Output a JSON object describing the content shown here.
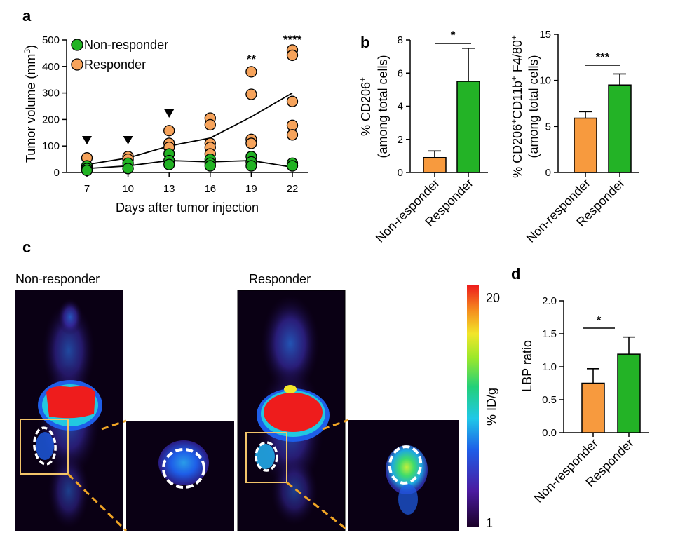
{
  "panel_labels": {
    "a": "a",
    "b": "b",
    "c": "c",
    "d": "d"
  },
  "colors": {
    "non_responder": "#21b323",
    "responder": "#f6a35b",
    "orange_bar": "#f79a3e",
    "green_bar": "#23b326",
    "crop_box": "#f2c46a",
    "dash": "#f0a526"
  },
  "chart_data": [
    {
      "id": "a",
      "type": "scatter",
      "xlabel": "Days after tumor injection",
      "ylabel_main": "Tumor volume (mm",
      "ylabel_sup": "3",
      "ylabel_end": ")",
      "x": [
        7,
        10,
        13,
        16,
        19,
        22
      ],
      "x_ticks": [
        "7",
        "10",
        "13",
        "16",
        "19",
        "22"
      ],
      "ylim": [
        0,
        500
      ],
      "y_ticks": [
        "0",
        "100",
        "200",
        "300",
        "400",
        "500"
      ],
      "legend": [
        {
          "name": "Non-responder",
          "color": "#21b323"
        },
        {
          "name": "Responder",
          "color": "#f6a35b"
        }
      ],
      "series": [
        {
          "name": "Responder",
          "color": "#f6a35b",
          "points": [
            [
              7,
              55
            ],
            [
              7,
              20
            ],
            [
              10,
              60
            ],
            [
              10,
              50
            ],
            [
              13,
              158
            ],
            [
              13,
              110
            ],
            [
              13,
              95
            ],
            [
              16,
              205
            ],
            [
              16,
              180
            ],
            [
              16,
              110
            ],
            [
              16,
              95
            ],
            [
              16,
              70
            ],
            [
              19,
              380
            ],
            [
              19,
              295
            ],
            [
              19,
              125
            ],
            [
              19,
              110
            ],
            [
              22,
              462
            ],
            [
              22,
              442
            ],
            [
              22,
              268
            ],
            [
              22,
              178
            ],
            [
              22,
              142
            ]
          ],
          "mean": [
            [
              7,
              30
            ],
            [
              10,
              55
            ],
            [
              13,
              100
            ],
            [
              16,
              130
            ],
            [
              19,
              210
            ],
            [
              22,
              300
            ]
          ]
        },
        {
          "name": "Non-responder",
          "color": "#21b323",
          "points": [
            [
              7,
              25
            ],
            [
              7,
              15
            ],
            [
              7,
              8
            ],
            [
              10,
              35
            ],
            [
              10,
              15
            ],
            [
              13,
              70
            ],
            [
              13,
              45
            ],
            [
              13,
              30
            ],
            [
              16,
              50
            ],
            [
              16,
              35
            ],
            [
              16,
              25
            ],
            [
              19,
              60
            ],
            [
              19,
              40
            ],
            [
              19,
              25
            ],
            [
              22,
              35
            ],
            [
              22,
              25
            ]
          ],
          "mean": [
            [
              7,
              15
            ],
            [
              10,
              25
            ],
            [
              13,
              45
            ],
            [
              16,
              40
            ],
            [
              19,
              45
            ],
            [
              22,
              20
            ]
          ]
        }
      ],
      "triangle_markers_x": [
        7,
        10,
        13
      ],
      "significance": [
        {
          "x": 19,
          "text": "**"
        },
        {
          "x": 22,
          "text": "****"
        }
      ]
    },
    {
      "id": "b1",
      "type": "bar",
      "categories": [
        "Non-responder",
        "Responder"
      ],
      "values": [
        0.9,
        5.5
      ],
      "errors": [
        0.4,
        2.0
      ],
      "colors": [
        "#f79a3e",
        "#23b326"
      ],
      "ylim": [
        0,
        8
      ],
      "y_ticks": [
        "0",
        "2",
        "4",
        "6",
        "8"
      ],
      "ylabel_line1": "% CD206",
      "ylabel_line1_sup": "+",
      "ylabel_line2": "(among total cells)",
      "significance": "*"
    },
    {
      "id": "b2",
      "type": "bar",
      "categories": [
        "Non-responder",
        "Responder"
      ],
      "values": [
        5.9,
        9.5
      ],
      "errors": [
        0.7,
        1.2
      ],
      "colors": [
        "#f79a3e",
        "#23b326"
      ],
      "ylim": [
        0,
        15
      ],
      "y_ticks": [
        "0",
        "5",
        "10",
        "15"
      ],
      "ylabel_parts": [
        "% CD206",
        "+",
        "CD11b",
        "+",
        " F4/80",
        "+"
      ],
      "ylabel_line2": "(among total cells)",
      "significance": "***"
    },
    {
      "id": "d",
      "type": "bar",
      "categories": [
        "Non-responder",
        "Responder"
      ],
      "values": [
        0.75,
        1.19
      ],
      "errors": [
        0.22,
        0.26
      ],
      "colors": [
        "#f79a3e",
        "#23b326"
      ],
      "ylim": [
        0,
        2.0
      ],
      "y_ticks": [
        "0.0",
        "0.5",
        "1.0",
        "1.5",
        "2.0"
      ],
      "ylabel": "LBP ratio",
      "significance": "*"
    }
  ],
  "panel_c": {
    "left_title": "Non-responder",
    "right_title": "Responder",
    "colorbar_label": "% ID/g",
    "colorbar_max": "20",
    "colorbar_min": "1"
  }
}
